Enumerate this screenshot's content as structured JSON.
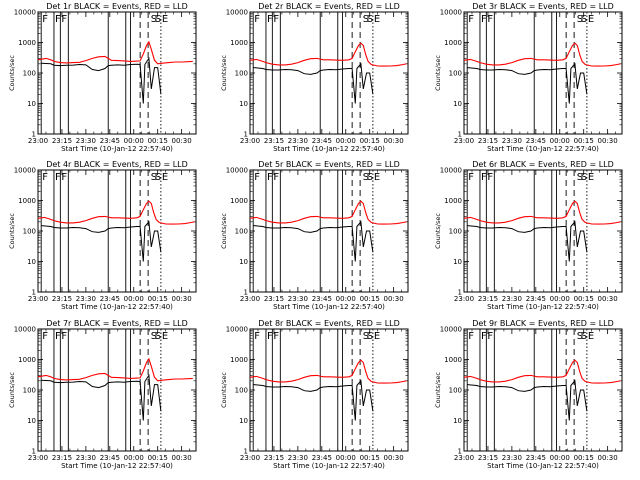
{
  "chart_data": [
    {
      "type": "line",
      "title": "Det 1r BLACK = Events, RED = LLD",
      "variant": "A",
      "ylabel": "Counts/sec",
      "xlabel": "Start Time (10-Jan-12 22:57:40)"
    },
    {
      "type": "line",
      "title": "Det 2r BLACK = Events, RED = LLD",
      "variant": "B",
      "ylabel": "Counts/sec",
      "xlabel": "Start Time (10-Jan-12 22:57:40)"
    },
    {
      "type": "line",
      "title": "Det 3r BLACK = Events, RED = LLD",
      "variant": "B",
      "ylabel": "Counts/sec",
      "xlabel": "Start Time (10-Jan-12 22:57:40)"
    },
    {
      "type": "line",
      "title": "Det 4r BLACK = Events, RED = LLD",
      "variant": "B",
      "ylabel": "Counts/sec",
      "xlabel": "Start Time (10-Jan-12 22:57:40)"
    },
    {
      "type": "line",
      "title": "Det 5r BLACK = Events, RED = LLD",
      "variant": "B",
      "ylabel": "Counts/sec",
      "xlabel": "Start Time (10-Jan-12 22:57:40)"
    },
    {
      "type": "line",
      "title": "Det 6r BLACK = Events, RED = LLD",
      "variant": "B",
      "ylabel": "Counts/sec",
      "xlabel": "Start Time (10-Jan-12 22:57:40)"
    },
    {
      "type": "line",
      "title": "Det 7r BLACK = Events, RED = LLD",
      "variant": "A",
      "ylabel": "Counts/sec",
      "xlabel": "Start Time (10-Jan-12 22:57:40)"
    },
    {
      "type": "line",
      "title": "Det 8r BLACK = Events, RED = LLD",
      "variant": "B",
      "ylabel": "Counts/sec",
      "xlabel": "Start Time (10-Jan-12 22:57:40)"
    },
    {
      "type": "line",
      "title": "Det 9r BLACK = Events, RED = LLD",
      "variant": "B",
      "ylabel": "Counts/sec",
      "xlabel": "Start Time (10-Jan-12 22:57:40)"
    }
  ],
  "shared": {
    "x_tick_labels": [
      "23:00",
      "23:15",
      "23:30",
      "23:45",
      "00:00",
      "00:15",
      "00:30"
    ],
    "x_tick_minutes": [
      0,
      15,
      30,
      45,
      60,
      75,
      90
    ],
    "x_range_minutes": [
      0,
      99
    ],
    "y_scale": "log",
    "y_range": [
      1,
      10000
    ],
    "y_tick_labels": [
      "1",
      "10",
      "100",
      "1000",
      "10000"
    ],
    "y_tick_values": [
      1,
      10,
      100,
      1000,
      10000
    ],
    "colors": {
      "events": "#000000",
      "lld": "#ff0000",
      "axes": "#000000"
    },
    "flag_labels": [
      {
        "text": "F",
        "minute": 2
      },
      {
        "text": "F",
        "minute": 10
      },
      {
        "text": "F",
        "minute": 14
      },
      {
        "text": "S",
        "minute": 70
      },
      {
        "text": "S",
        "minute": 72.5
      },
      {
        "text": "E",
        "minute": 77
      }
    ],
    "solid_vlines_minutes": [
      2,
      10,
      14,
      19,
      44,
      55,
      58
    ],
    "dashed_vlines_minutes": [
      64,
      69
    ],
    "dotted_vlines_minutes": [
      77
    ],
    "series_variants": {
      "A": {
        "lld": [
          [
            0,
            270
          ],
          [
            5,
            300
          ],
          [
            8,
            270
          ],
          [
            10,
            240
          ],
          [
            14,
            220
          ],
          [
            18,
            215
          ],
          [
            22,
            220
          ],
          [
            26,
            225
          ],
          [
            30,
            255
          ],
          [
            34,
            300
          ],
          [
            38,
            340
          ],
          [
            42,
            350
          ],
          [
            44,
            300
          ],
          [
            46,
            260
          ],
          [
            50,
            255
          ],
          [
            54,
            250
          ],
          [
            58,
            240
          ],
          [
            62,
            245
          ],
          [
            64,
            250
          ],
          [
            66,
            420
          ],
          [
            68,
            800
          ],
          [
            69.5,
            1050
          ],
          [
            71,
            600
          ],
          [
            73,
            260
          ],
          [
            75,
            200
          ],
          [
            78,
            210
          ],
          [
            82,
            220
          ],
          [
            86,
            230
          ],
          [
            90,
            230
          ],
          [
            94,
            235
          ],
          [
            97,
            240
          ]
        ],
        "events": [
          [
            2,
            210
          ],
          [
            8,
            200
          ],
          [
            10,
            180
          ],
          [
            14,
            175
          ],
          [
            18,
            180
          ],
          [
            22,
            182
          ],
          [
            26,
            190
          ],
          [
            30,
            185
          ],
          [
            34,
            130
          ],
          [
            38,
            120
          ],
          [
            42,
            140
          ],
          [
            44,
            175
          ],
          [
            46,
            180
          ],
          [
            50,
            185
          ],
          [
            54,
            180
          ],
          [
            58,
            190
          ],
          [
            62,
            195
          ],
          [
            64,
            190
          ],
          [
            66,
            10
          ],
          [
            67,
            190
          ],
          [
            69.5,
            300
          ],
          [
            71,
            30
          ],
          [
            73,
            150
          ],
          [
            75,
            150
          ],
          [
            77,
            20
          ]
        ]
      },
      "B": {
        "lld": [
          [
            0,
            260
          ],
          [
            4,
            280
          ],
          [
            8,
            240
          ],
          [
            10,
            220
          ],
          [
            14,
            195
          ],
          [
            18,
            185
          ],
          [
            22,
            185
          ],
          [
            26,
            195
          ],
          [
            30,
            220
          ],
          [
            34,
            260
          ],
          [
            38,
            295
          ],
          [
            42,
            300
          ],
          [
            44,
            285
          ],
          [
            46,
            270
          ],
          [
            50,
            270
          ],
          [
            54,
            265
          ],
          [
            58,
            260
          ],
          [
            62,
            270
          ],
          [
            64,
            300
          ],
          [
            66,
            500
          ],
          [
            68,
            800
          ],
          [
            69.5,
            950
          ],
          [
            71,
            800
          ],
          [
            72.5,
            400
          ],
          [
            74,
            240
          ],
          [
            76,
            190
          ],
          [
            80,
            170
          ],
          [
            84,
            168
          ],
          [
            88,
            170
          ],
          [
            92,
            175
          ],
          [
            96,
            190
          ],
          [
            98,
            200
          ]
        ],
        "events": [
          [
            2,
            150
          ],
          [
            8,
            140
          ],
          [
            10,
            130
          ],
          [
            14,
            125
          ],
          [
            18,
            125
          ],
          [
            22,
            130
          ],
          [
            26,
            128
          ],
          [
            30,
            120
          ],
          [
            34,
            95
          ],
          [
            38,
            90
          ],
          [
            42,
            100
          ],
          [
            44,
            120
          ],
          [
            46,
            125
          ],
          [
            50,
            130
          ],
          [
            54,
            128
          ],
          [
            58,
            135
          ],
          [
            62,
            140
          ],
          [
            64,
            140
          ],
          [
            66,
            10
          ],
          [
            67,
            140
          ],
          [
            69.5,
            200
          ],
          [
            71,
            30
          ],
          [
            73,
            100
          ],
          [
            75,
            100
          ],
          [
            77,
            20
          ]
        ]
      }
    }
  }
}
